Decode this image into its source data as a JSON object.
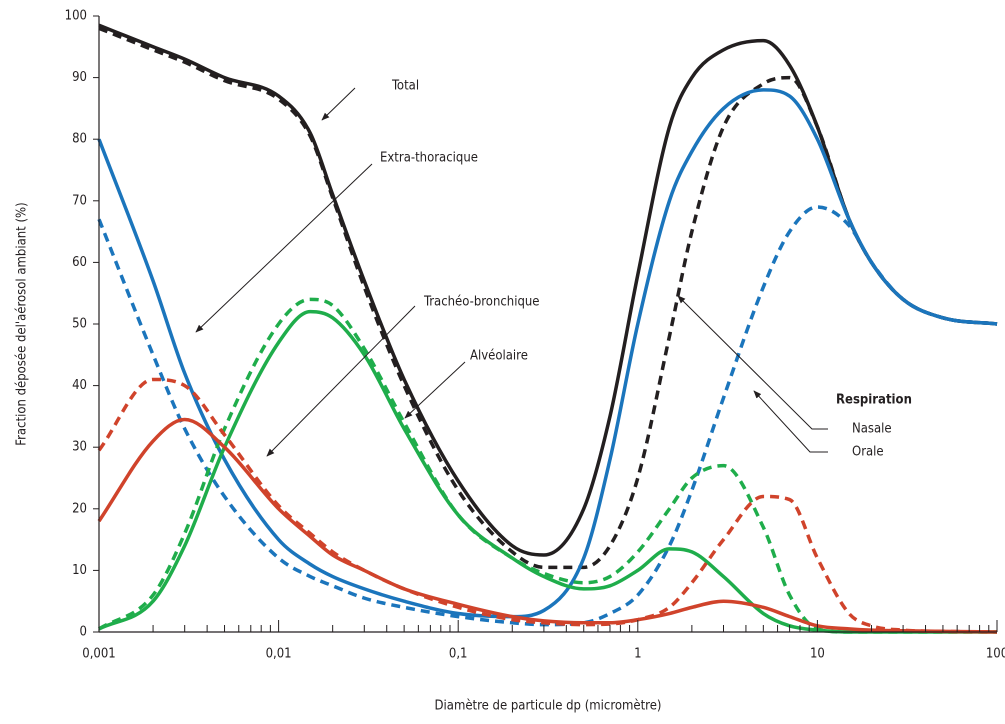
{
  "chart_data": {
    "type": "line",
    "xlabel": "Diamètre de particule dp (micromètre)",
    "ylabel": "Fraction déposée del'aérosol ambiant (%)",
    "xscale": "log",
    "xlim": [
      0.001,
      100
    ],
    "ylim": [
      0,
      100
    ],
    "xticks": [
      {
        "value": 0.001,
        "label": "0,001"
      },
      {
        "value": 0.01,
        "label": "0,01"
      },
      {
        "value": 0.1,
        "label": "0,1"
      },
      1,
      10,
      100
    ],
    "yticks": [
      0,
      10,
      20,
      30,
      40,
      50,
      60,
      70,
      80,
      90,
      100
    ],
    "x": [
      0.001,
      0.002,
      0.003,
      0.005,
      0.01,
      0.015,
      0.02,
      0.03,
      0.05,
      0.1,
      0.2,
      0.3,
      0.5,
      0.7,
      1,
      1.5,
      2,
      3,
      5,
      7,
      10,
      15,
      20,
      30,
      50,
      100
    ],
    "series": [
      {
        "name": "Total",
        "color": "#231f20",
        "nasal": [
          98.5,
          95,
          93,
          90,
          87,
          81,
          71,
          57,
          41,
          24.5,
          14,
          12.5,
          20,
          35,
          58,
          82,
          90,
          94.5,
          96,
          92,
          82,
          67,
          60,
          54,
          51,
          50
        ],
        "oral": [
          98,
          94.5,
          92.5,
          89.5,
          86.5,
          80.5,
          70.5,
          56,
          40,
          23,
          13,
          10.5,
          10.5,
          14,
          25,
          48,
          65,
          82,
          89,
          90,
          82,
          67,
          60,
          54,
          51,
          50
        ]
      },
      {
        "name": "Extra-thoracique",
        "color": "#1b75bc",
        "nasal": [
          80,
          57,
          42,
          28,
          15,
          11,
          9,
          7,
          5,
          3,
          2.5,
          3.5,
          12,
          28,
          50,
          70,
          78,
          85,
          88,
          87,
          80,
          67,
          60,
          54,
          51,
          50
        ],
        "oral": [
          67,
          45,
          33,
          22,
          12,
          9,
          7.5,
          5.5,
          4,
          2.5,
          1.5,
          1.2,
          1.5,
          3,
          6,
          14,
          23,
          38,
          56,
          65,
          69,
          66,
          60,
          54,
          51,
          50
        ]
      },
      {
        "name": "Trachéo-bronchique",
        "color": "#1fad4b",
        "nasal": [
          0.5,
          5,
          14,
          30,
          47,
          52,
          51,
          45,
          33,
          19,
          12,
          9,
          7,
          7.5,
          10,
          13.5,
          13,
          9,
          3,
          1,
          0.3,
          0,
          0,
          0,
          0,
          0
        ],
        "oral": [
          0.5,
          6,
          16,
          33,
          50,
          54,
          53,
          46,
          34,
          19,
          12,
          9.5,
          8,
          9,
          13,
          20,
          25,
          27,
          17,
          6,
          0.5,
          0,
          0,
          0,
          0,
          0
        ]
      },
      {
        "name": "Alvéolaire",
        "color": "#d0432b",
        "nasal": [
          18,
          31,
          34.5,
          30,
          20,
          15.5,
          12.5,
          10,
          7,
          4.5,
          2.5,
          1.8,
          1.5,
          1.5,
          2,
          3,
          4,
          5,
          4,
          2.5,
          1,
          0.5,
          0.3,
          0.2,
          0.1,
          0
        ],
        "oral": [
          29.5,
          41,
          40,
          32,
          20.5,
          16,
          13,
          10,
          7,
          4,
          2,
          1.5,
          1.2,
          1.3,
          2,
          4,
          8,
          15,
          22,
          21.5,
          12,
          3,
          1,
          0.3,
          0.1,
          0
        ]
      }
    ],
    "legend": {
      "title": "Respiration",
      "nasal": "Nasale",
      "oral": "Orale"
    }
  }
}
